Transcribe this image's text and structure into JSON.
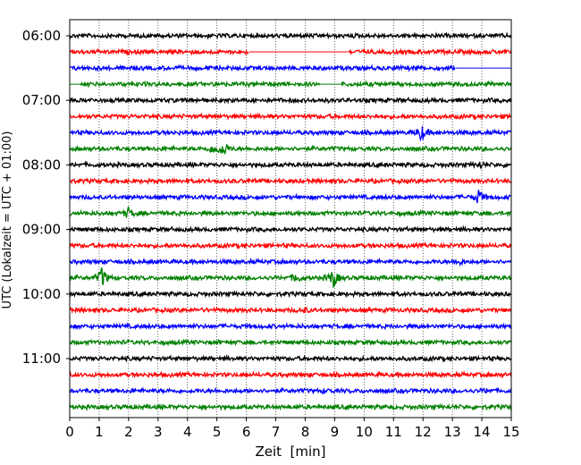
{
  "chart_data": {
    "type": "line",
    "title": "",
    "xlabel": "Zeit  [min]",
    "ylabel": "UTC (Lokalzeit = UTC + 01:00)",
    "xlim": [
      0,
      15
    ],
    "x_ticks": [
      0,
      1,
      2,
      3,
      4,
      5,
      6,
      7,
      8,
      9,
      10,
      11,
      12,
      13,
      14,
      15
    ],
    "x_tick_labels": [
      "0",
      "1",
      "2",
      "3",
      "4",
      "5",
      "6",
      "7",
      "8",
      "9",
      "10",
      "11",
      "12",
      "13",
      "14",
      "15"
    ],
    "y_tick_labels": [
      "06:00",
      "07:00",
      "08:00",
      "09:00",
      "10:00",
      "11:00"
    ],
    "y_tick_row_index": [
      0,
      4,
      8,
      12,
      16,
      20
    ],
    "vertical_gridlines": "dotted",
    "trace_minutes_per_row": 15,
    "trace_colors": [
      "#000000",
      "#ff0000",
      "#0000ff",
      "#008000"
    ],
    "traces": [
      {
        "start": "06:00",
        "color": "#000000",
        "gaps": [],
        "events": []
      },
      {
        "start": "06:15",
        "color": "#ff0000",
        "gaps": [
          [
            6.1,
            9.45
          ]
        ],
        "events": []
      },
      {
        "start": "06:30",
        "color": "#0000ff",
        "gaps": [
          [
            13.1,
            15
          ]
        ],
        "events": []
      },
      {
        "start": "06:45",
        "color": "#008000",
        "gaps": [
          [
            0,
            0.35
          ],
          [
            8.5,
            9.2
          ]
        ],
        "events": []
      },
      {
        "start": "07:00",
        "color": "#000000",
        "gaps": [],
        "events": []
      },
      {
        "start": "07:15",
        "color": "#ff0000",
        "gaps": [],
        "events": []
      },
      {
        "start": "07:30",
        "color": "#0000ff",
        "gaps": [],
        "events": [
          {
            "t": 11.95,
            "amp": 9
          }
        ]
      },
      {
        "start": "07:45",
        "color": "#008000",
        "gaps": [],
        "events": [
          {
            "t": 4.9,
            "amp": 5
          },
          {
            "t": 5.25,
            "amp": 8
          }
        ]
      },
      {
        "start": "08:00",
        "color": "#000000",
        "gaps": [],
        "events": [
          {
            "t": 13.95,
            "amp": 3
          }
        ]
      },
      {
        "start": "08:15",
        "color": "#ff0000",
        "gaps": [],
        "events": []
      },
      {
        "start": "08:30",
        "color": "#0000ff",
        "gaps": [],
        "events": [
          {
            "t": 13.9,
            "amp": 8
          }
        ]
      },
      {
        "start": "08:45",
        "color": "#008000",
        "gaps": [],
        "events": [
          {
            "t": 2.0,
            "amp": 6
          }
        ]
      },
      {
        "start": "09:00",
        "color": "#000000",
        "gaps": [],
        "events": []
      },
      {
        "start": "09:15",
        "color": "#ff0000",
        "gaps": [],
        "events": []
      },
      {
        "start": "09:30",
        "color": "#0000ff",
        "gaps": [],
        "events": [
          {
            "t": 13.2,
            "amp": 3
          }
        ]
      },
      {
        "start": "09:45",
        "color": "#008000",
        "gaps": [],
        "events": [
          {
            "t": 1.1,
            "amp": 12
          },
          {
            "t": 7.7,
            "amp": 5
          },
          {
            "t": 8.95,
            "amp": 11
          }
        ]
      },
      {
        "start": "10:00",
        "color": "#000000",
        "gaps": [],
        "events": []
      },
      {
        "start": "10:15",
        "color": "#ff0000",
        "gaps": [],
        "events": [
          {
            "t": 8.0,
            "amp": 2
          }
        ]
      },
      {
        "start": "10:30",
        "color": "#0000ff",
        "gaps": [],
        "events": []
      },
      {
        "start": "10:45",
        "color": "#008000",
        "gaps": [],
        "events": []
      },
      {
        "start": "11:00",
        "color": "#000000",
        "gaps": [],
        "events": []
      },
      {
        "start": "11:15",
        "color": "#ff0000",
        "gaps": [],
        "events": []
      },
      {
        "start": "11:30",
        "color": "#0000ff",
        "gaps": [],
        "events": [
          {
            "t": 8.7,
            "amp": 2
          },
          {
            "t": 14.2,
            "amp": 2
          }
        ]
      },
      {
        "start": "11:45",
        "color": "#008000",
        "gaps": [],
        "events": []
      }
    ]
  }
}
